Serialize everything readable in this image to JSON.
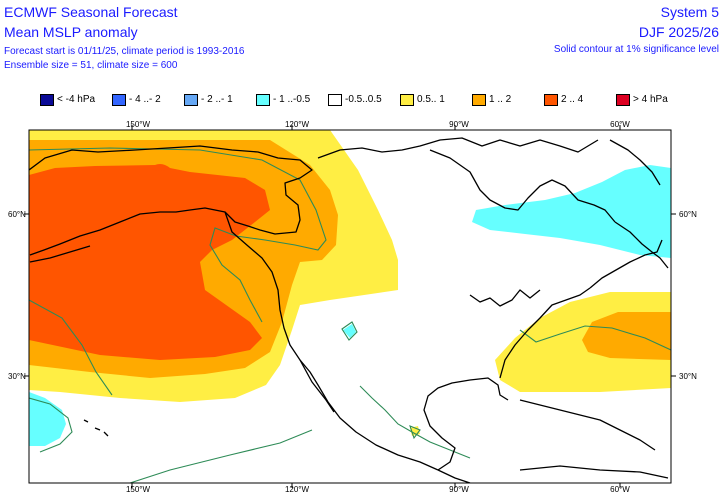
{
  "header": {
    "title": "ECMWF Seasonal Forecast",
    "subtitle": "Mean MSLP anomaly",
    "forecast_info": "Forecast start is 01/11/25, climate period is 1993-2016",
    "ensemble_info": "Ensemble size = 51, climate size = 600",
    "system": "System 5",
    "season": "DJF 2025/26",
    "significance_note": "Solid contour at 1% significance level"
  },
  "legend": [
    {
      "label": "< -4 hPa",
      "color": "#0a0a96"
    },
    {
      "label": "- 4 ..- 2",
      "color": "#3366ff"
    },
    {
      "label": "- 2 ..- 1",
      "color": "#66a8f5"
    },
    {
      "label": "- 1 ..-0.5",
      "color": "#66ffff"
    },
    {
      "label": "-0.5..0.5",
      "color": "#ffffff"
    },
    {
      "label": "0.5.. 1",
      "color": "#ffee44"
    },
    {
      "label": "1 .. 2",
      "color": "#ffaa00"
    },
    {
      "label": "2 .. 4",
      "color": "#ff5500"
    },
    {
      "label": "> 4 hPa",
      "color": "#dd0022"
    }
  ],
  "map": {
    "top_lon_labels": [
      "150°W",
      "120°W",
      "90°W",
      "60°W"
    ],
    "bottom_lon_labels": [
      "150°W",
      "120°W",
      "90°W",
      "60°W"
    ],
    "left_lat_labels": [
      "60°N",
      "30°N"
    ],
    "right_lat_labels": [
      "60°N",
      "30°N"
    ],
    "significance_contour_color": "#2e8b57",
    "coastline_color": "#000000"
  }
}
